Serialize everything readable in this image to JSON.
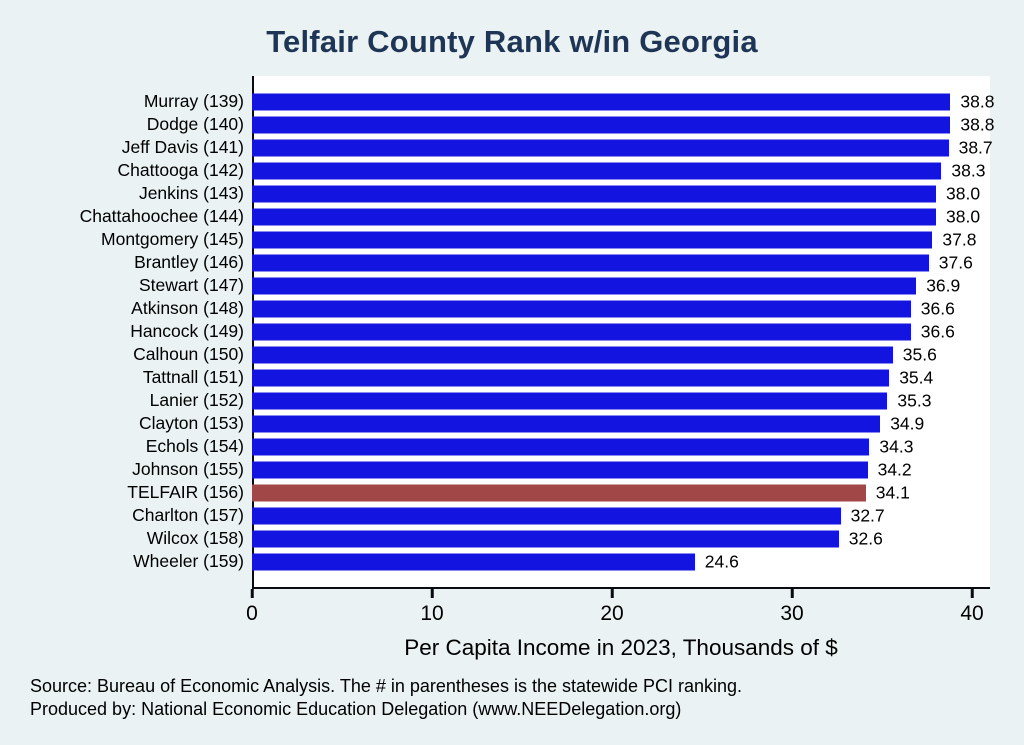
{
  "title": "Telfair County Rank w/in Georgia",
  "chart_data": {
    "type": "bar",
    "orientation": "horizontal",
    "title": "Telfair County Rank w/in Georgia",
    "categories": [
      "Murray (139)",
      "Dodge (140)",
      "Jeff Davis (141)",
      "Chattooga (142)",
      "Jenkins (143)",
      "Chattahoochee (144)",
      "Montgomery (145)",
      "Brantley (146)",
      "Stewart (147)",
      "Atkinson (148)",
      "Hancock (149)",
      "Calhoun (150)",
      "Tattnall (151)",
      "Lanier (152)",
      "Clayton (153)",
      "Echols (154)",
      "Johnson (155)",
      "TELFAIR (156)",
      "Charlton (157)",
      "Wilcox (158)",
      "Wheeler (159)"
    ],
    "values": [
      38.8,
      38.8,
      38.7,
      38.3,
      38.0,
      38.0,
      37.8,
      37.6,
      36.9,
      36.6,
      36.6,
      35.6,
      35.4,
      35.3,
      34.9,
      34.3,
      34.2,
      34.1,
      32.7,
      32.6,
      24.6
    ],
    "highlight_category": "TELFAIR (156)",
    "bar_color": "#1414e0",
    "highlight_color": "#a14747",
    "xlabel": "Per Capita Income in 2023, Thousands of $",
    "xticks": [
      0,
      10,
      20,
      30,
      40
    ],
    "xlim": [
      0,
      41
    ],
    "grid": false,
    "legend": false
  },
  "footer": {
    "line1": "Source: Bureau of Economic Analysis. The # in parentheses is the statewide PCI ranking.",
    "line2": "Produced by: National Economic Education Delegation (www.NEEDelegation.org)"
  }
}
